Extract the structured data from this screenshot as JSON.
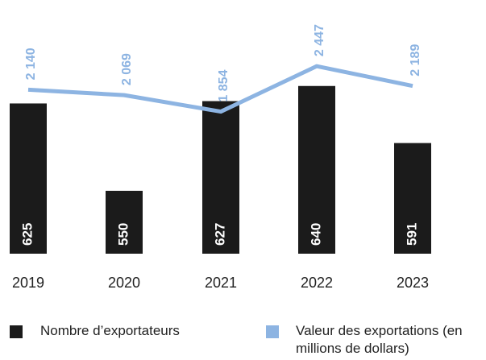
{
  "chart_data": {
    "type": "bar_line",
    "categories": [
      "2019",
      "2020",
      "2021",
      "2022",
      "2023"
    ],
    "ylim": [
      496,
      700
    ],
    "y2lim": [
      0,
      3100
    ],
    "series": [
      {
        "name": "Nombre d’exportateurs",
        "type": "bar",
        "color": "#1b1b1b",
        "values": [
          625,
          550,
          627,
          640,
          591
        ]
      },
      {
        "name": "Valeur des exportations (en millions de dollars)",
        "type": "line",
        "axis": "y2",
        "color": "#8db4e2",
        "values": [
          2140,
          2069,
          1854,
          2447,
          2189
        ],
        "value_labels": [
          "2 140",
          "2 069",
          "1 854",
          "2 447",
          "2 189"
        ]
      }
    ]
  }
}
